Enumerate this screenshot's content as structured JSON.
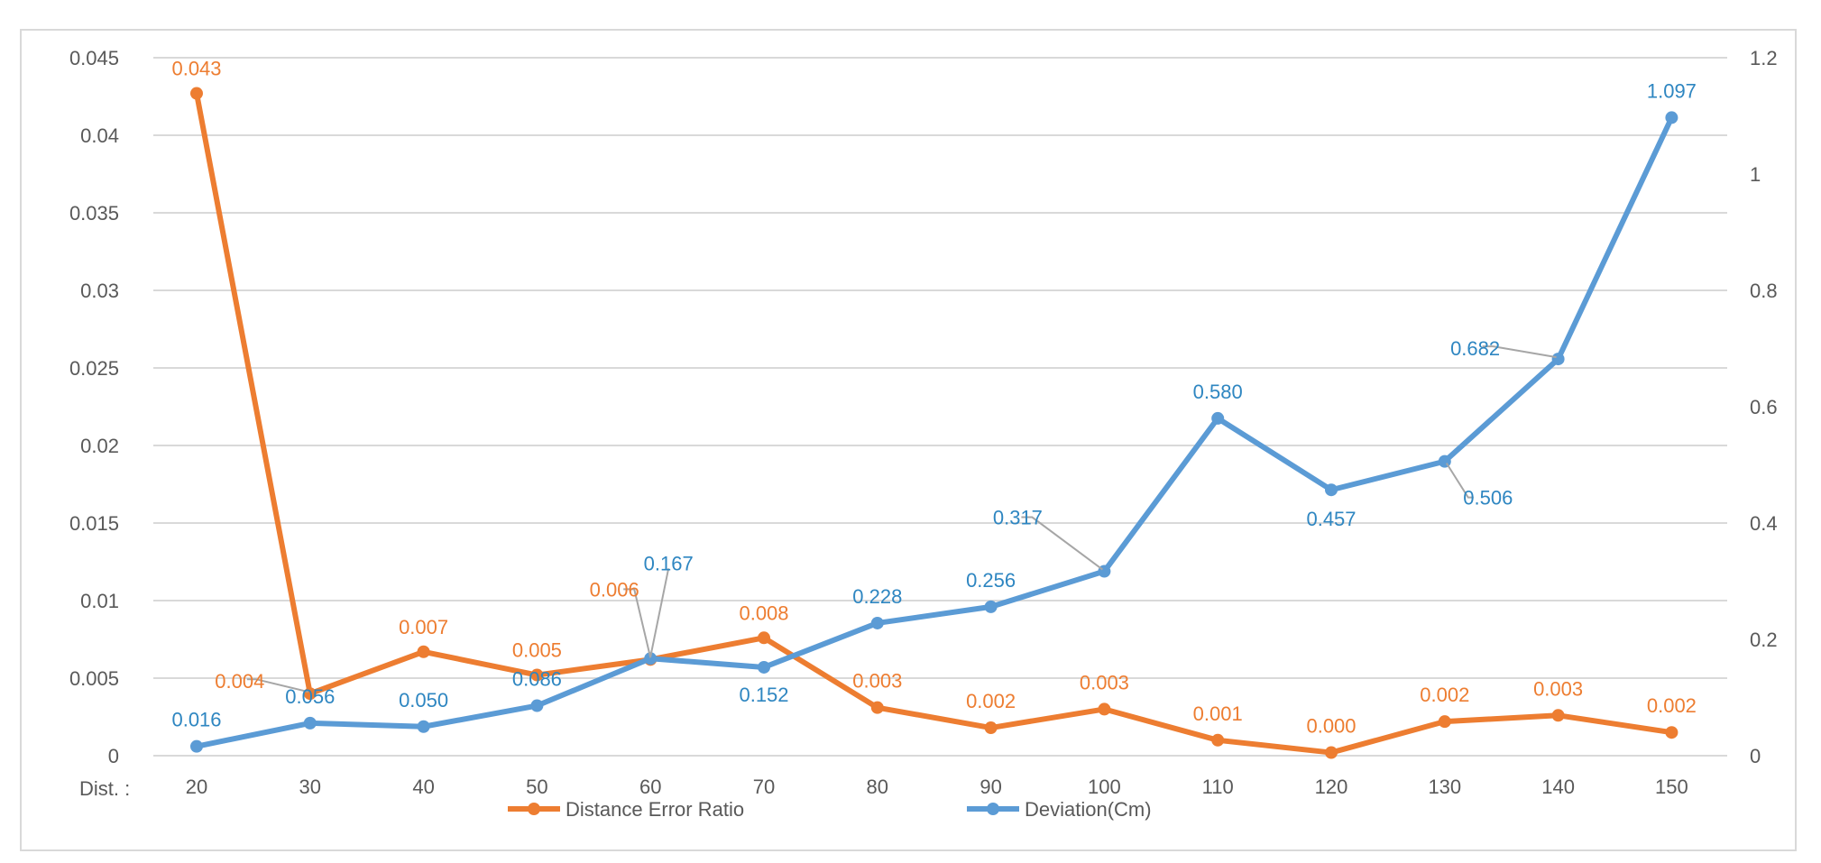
{
  "chart_data": {
    "type": "line",
    "title": "",
    "x_axis_prefix": "Dist. :",
    "categories": [
      "20",
      "30",
      "40",
      "50",
      "60",
      "70",
      "80",
      "90",
      "100",
      "110",
      "120",
      "130",
      "140",
      "150"
    ],
    "left_axis": {
      "ylim": [
        0,
        0.045
      ],
      "ticks": [
        "0",
        "0.005",
        "0.01",
        "0.015",
        "0.02",
        "0.025",
        "0.03",
        "0.035",
        "0.04",
        "0.045"
      ],
      "tick_values": [
        0,
        0.005,
        0.01,
        0.015,
        0.02,
        0.025,
        0.03,
        0.035,
        0.04,
        0.045
      ]
    },
    "right_axis": {
      "ylim": [
        0,
        1.2
      ],
      "ticks": [
        "0",
        "0.2",
        "0.4",
        "0.6",
        "0.8",
        "1",
        "1.2"
      ],
      "tick_values": [
        0,
        0.2,
        0.4,
        0.6,
        0.8,
        1.0,
        1.2
      ]
    },
    "grid": true,
    "legend_position": "bottom",
    "series": [
      {
        "name": "Distance Error Ratio",
        "axis": "left",
        "color": "#ED7D31",
        "values": [
          0.0427,
          0.004,
          0.0067,
          0.0052,
          0.0062,
          0.0076,
          0.0031,
          0.0018,
          0.003,
          0.001,
          0.0002,
          0.0022,
          0.0026,
          0.0015
        ],
        "labels": [
          "0.043",
          "0.004",
          "0.007",
          "0.005",
          "0.006",
          "0.008",
          "0.003",
          "0.002",
          "0.003",
          "0.001",
          "0.000",
          "0.002",
          "0.003",
          "0.002"
        ]
      },
      {
        "name": "Deviation(Cm)",
        "axis": "right",
        "color": "#5B9BD5",
        "values": [
          0.016,
          0.056,
          0.05,
          0.086,
          0.167,
          0.152,
          0.228,
          0.256,
          0.317,
          0.58,
          0.457,
          0.506,
          0.682,
          1.097
        ],
        "labels": [
          "0.016",
          "0.056",
          "0.050",
          "0.086",
          "0.167",
          "0.152",
          "0.228",
          "0.256",
          "0.317",
          "0.580",
          "0.457",
          "0.506",
          "0.682",
          "1.097"
        ]
      }
    ],
    "label_colors": {
      "orange": "#ED7D31",
      "blue": "#2E86C1",
      "leader": "#A6A6A6"
    }
  }
}
